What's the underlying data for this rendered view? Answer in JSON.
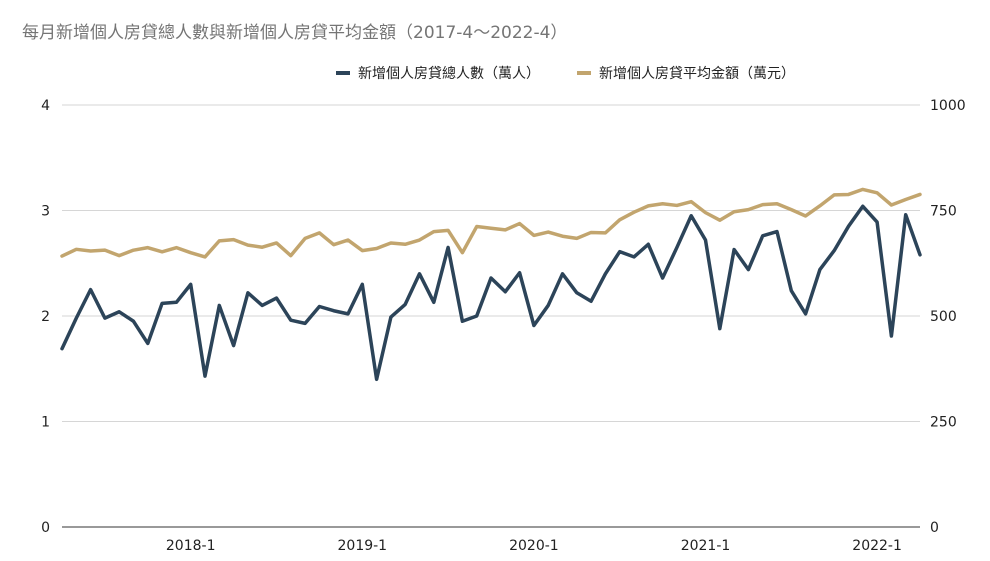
{
  "chart_data": {
    "type": "line",
    "title": "每月新增個人房貸總人數與新增個人房貸平均金額（2017-4～2022-4）",
    "x_tick_labels": [
      "2018-1",
      "2019-1",
      "2020-1",
      "2021-1",
      "2022-1"
    ],
    "x_start": "2017-4",
    "x_end": "2022-4",
    "legend_position": "top",
    "grid": "horizontal",
    "y_left": {
      "min": 0,
      "max": 4,
      "ticks": [
        "0",
        "1",
        "2",
        "3",
        "4"
      ]
    },
    "y_right": {
      "min": 0,
      "max": 1000,
      "ticks": [
        "0",
        "250",
        "500",
        "750",
        "1000"
      ]
    },
    "series": [
      {
        "name": "新增個人房貸總人數（萬人）",
        "axis": "left",
        "color": "#2c4459",
        "values": [
          1.69,
          1.98,
          2.25,
          1.98,
          2.04,
          1.95,
          1.74,
          2.12,
          2.13,
          2.3,
          1.43,
          2.1,
          1.72,
          2.22,
          2.1,
          2.17,
          1.96,
          1.93,
          2.09,
          2.05,
          2.02,
          2.3,
          1.4,
          1.99,
          2.11,
          2.4,
          2.13,
          2.65,
          1.95,
          2.0,
          2.36,
          2.23,
          2.41,
          1.91,
          2.1,
          2.4,
          2.22,
          2.14,
          2.4,
          2.61,
          2.56,
          2.68,
          2.36,
          2.65,
          2.95,
          2.72,
          1.88,
          2.63,
          2.44,
          2.76,
          2.8,
          2.24,
          2.02,
          2.44,
          2.62,
          2.85,
          3.04,
          2.89,
          1.81,
          2.96,
          2.58
        ]
      },
      {
        "name": "新增個人房貸平均金額（萬元）",
        "axis": "right",
        "color": "#c2a56e",
        "values": [
          642,
          658,
          654,
          656,
          643,
          656,
          662,
          652,
          662,
          650,
          640,
          678,
          681,
          668,
          663,
          673,
          643,
          684,
          697,
          669,
          680,
          655,
          660,
          673,
          670,
          680,
          700,
          703,
          650,
          712,
          708,
          704,
          719,
          691,
          699,
          689,
          684,
          698,
          697,
          728,
          746,
          761,
          766,
          762,
          771,
          745,
          727,
          747,
          752,
          764,
          766,
          752,
          737,
          761,
          787,
          788,
          800,
          792,
          763,
          776,
          788
        ]
      }
    ]
  }
}
